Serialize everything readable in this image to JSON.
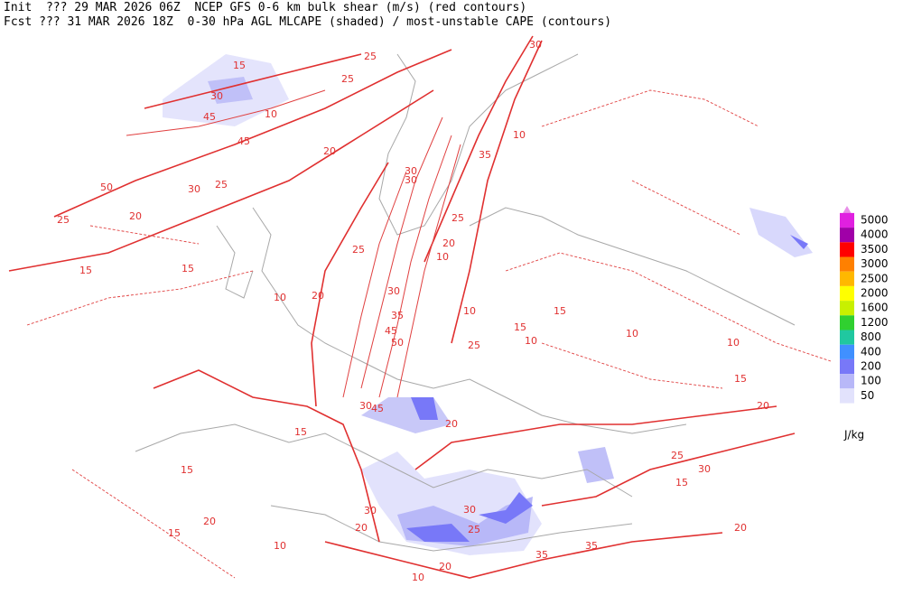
{
  "header": {
    "line1": "Init  ??? 29 MAR 2026 06Z  NCEP GFS 0-6 km bulk shear (m/s) (red contours)",
    "line2": "Fcst ??? 31 MAR 2026 18Z  0-30 hPa AGL MLCAPE (shaded) / most-unstable CAPE (contours)"
  },
  "legend": {
    "overflow_color": "#e88ee8",
    "levels": [
      {
        "value": 5000,
        "color": "#e020e0"
      },
      {
        "value": 4000,
        "color": "#a000a8"
      },
      {
        "value": 3500,
        "color": "#ff0000"
      },
      {
        "value": 3000,
        "color": "#ff8000"
      },
      {
        "value": 2500,
        "color": "#ffb800"
      },
      {
        "value": 2000,
        "color": "#ffff00"
      },
      {
        "value": 1600,
        "color": "#c8f000"
      },
      {
        "value": 1200,
        "color": "#30d030"
      },
      {
        "value": 800,
        "color": "#20c8a0"
      },
      {
        "value": 400,
        "color": "#4090ff"
      },
      {
        "value": 200,
        "color": "#7878f8"
      },
      {
        "value": 100,
        "color": "#b8b8f8"
      },
      {
        "value": 50,
        "color": "#e2e2fc"
      }
    ],
    "unit": "J/kg"
  },
  "contour_labels": [
    30,
    25,
    15,
    25,
    30,
    45,
    10,
    45,
    20,
    50,
    30,
    25,
    25,
    20,
    15,
    30,
    30,
    35,
    25,
    20,
    15,
    10,
    25,
    10,
    10,
    20,
    15,
    10,
    30,
    45,
    35,
    50,
    10,
    25,
    15,
    10,
    20,
    45,
    30,
    15,
    15,
    20,
    15,
    30,
    20,
    25,
    30,
    35,
    35,
    20,
    10,
    10,
    20,
    15,
    25,
    20,
    30,
    10,
    15
  ]
}
